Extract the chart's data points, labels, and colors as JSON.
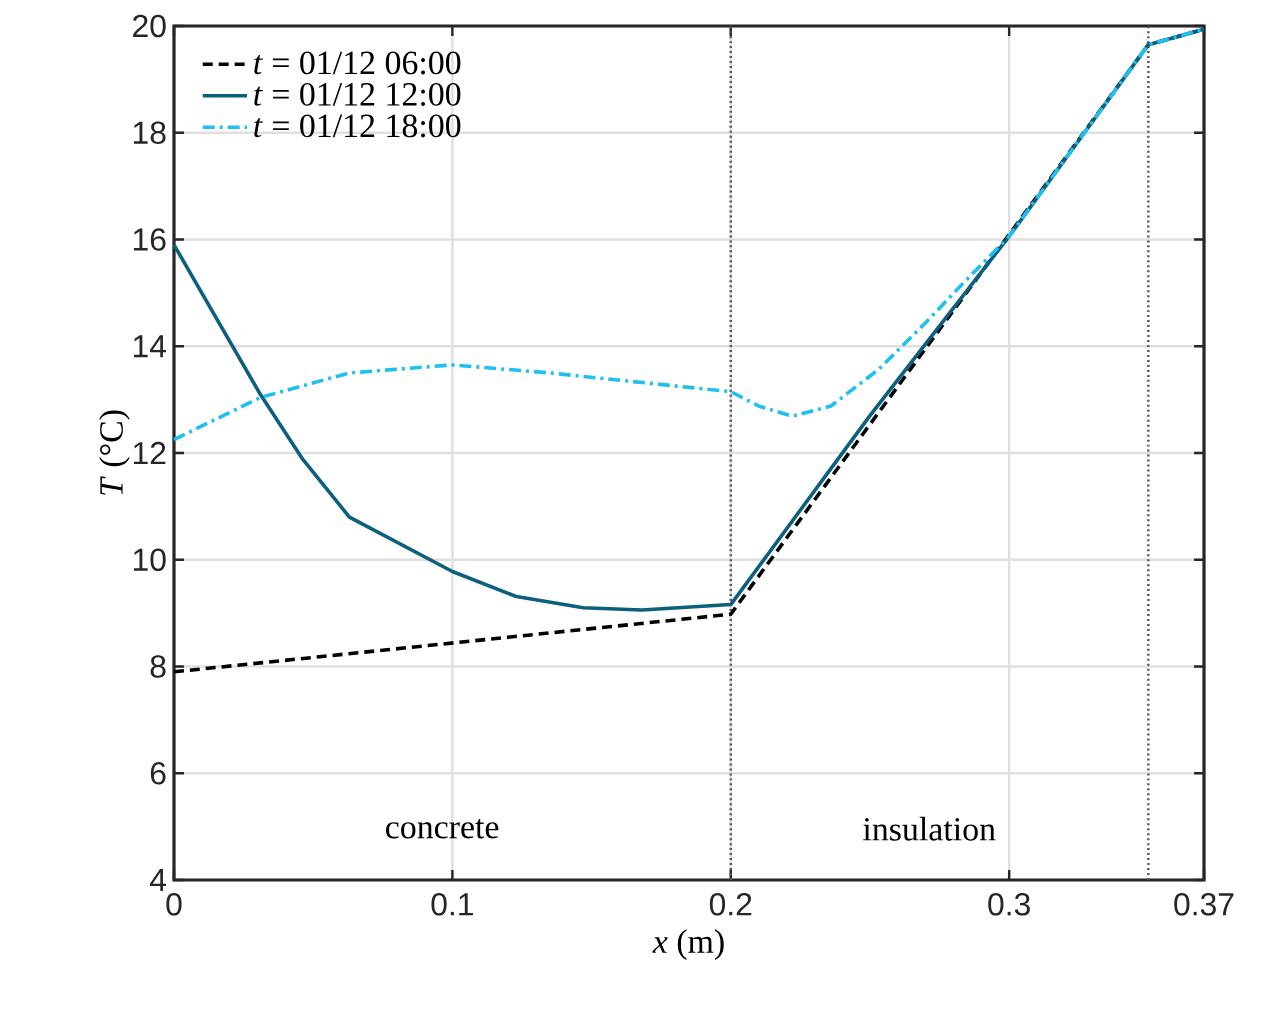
{
  "chart_data": {
    "type": "line",
    "xlabel": "*x* (m)",
    "ylabel": "*T* (°C)",
    "xlim": [
      0,
      0.37
    ],
    "ylim": [
      4,
      20
    ],
    "xticks": [
      0,
      0.1,
      0.2,
      0.3,
      0.37
    ],
    "yticks": [
      4,
      6,
      8,
      10,
      12,
      14,
      16,
      18,
      20
    ],
    "grid": true,
    "legend": "top left",
    "series": [
      {
        "name": "*t* = 01/12 06:00",
        "color": "#000000",
        "line_style": "dashed",
        "x": [
          0,
          0.2,
          0.35,
          0.37
        ],
        "values": [
          7.9,
          8.98,
          19.65,
          19.94
        ]
      },
      {
        "name": "*t* = 01/12 12:00",
        "color": "#0d5f7e",
        "line_style": "solid",
        "x": [
          0,
          0.031,
          0.046,
          0.063,
          0.1,
          0.123,
          0.147,
          0.168,
          0.2,
          0.25,
          0.3,
          0.35,
          0.37
        ],
        "values": [
          15.9,
          13.1,
          11.9,
          10.8,
          9.78,
          9.31,
          9.1,
          9.06,
          9.16,
          12.7,
          16.06,
          19.65,
          19.94
        ]
      },
      {
        "name": "*t* = 01/12 18:00",
        "color": "#1ec0f0",
        "line_style": "dashdot",
        "x": [
          0,
          0.031,
          0.063,
          0.1,
          0.135,
          0.17,
          0.2,
          0.21,
          0.222,
          0.236,
          0.253,
          0.27,
          0.282,
          0.3,
          0.35,
          0.37
        ],
        "values": [
          12.25,
          13.04,
          13.5,
          13.65,
          13.5,
          13.31,
          13.15,
          12.88,
          12.69,
          12.88,
          13.56,
          14.44,
          15.1,
          16.06,
          19.65,
          19.94
        ]
      }
    ],
    "ref_lines": [
      {
        "axis": "x",
        "value": 0.2,
        "color": "#555555",
        "line_style": "dotted"
      },
      {
        "axis": "x",
        "value": 0.35,
        "color": "#555555",
        "line_style": "dotted"
      }
    ],
    "annotations": [
      "concrete",
      "insulation"
    ]
  }
}
